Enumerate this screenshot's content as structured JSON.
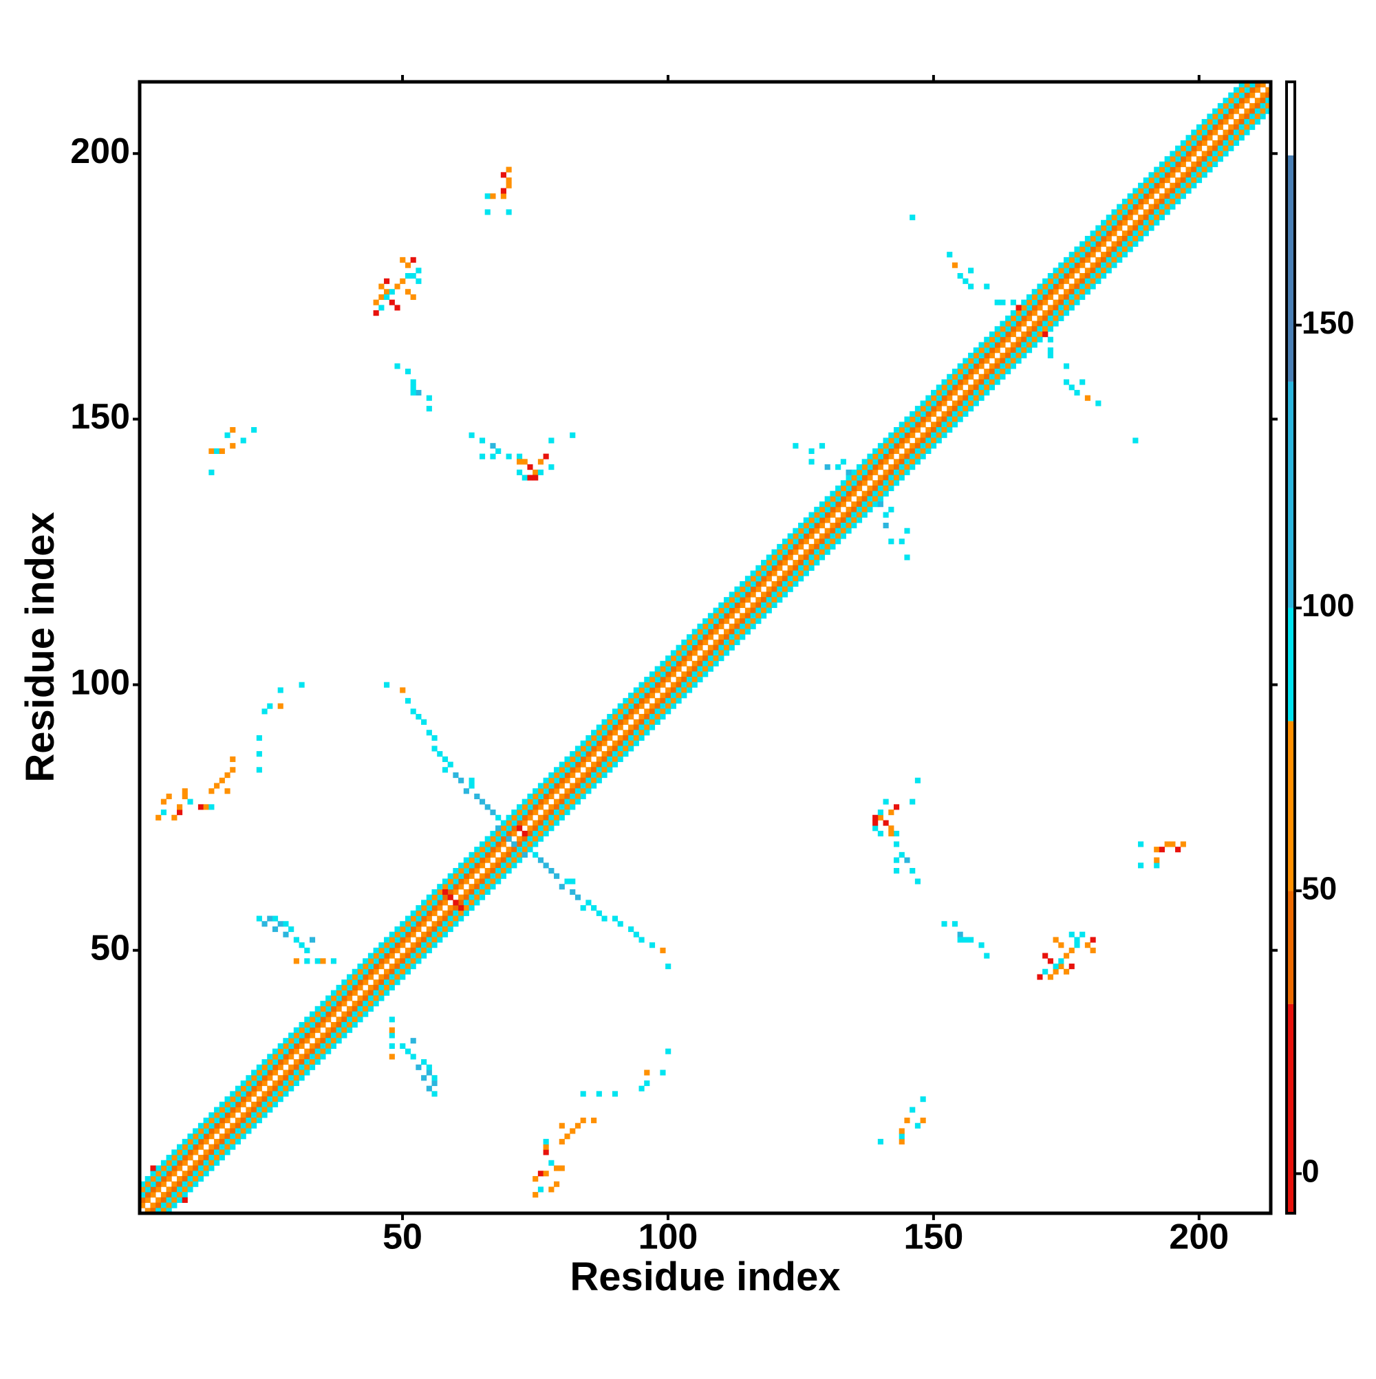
{
  "chart_data": {
    "type": "heatmap",
    "x_label": "Residue index",
    "y_label": "Residue index",
    "xlim": [
      0.5,
      213.5
    ],
    "ylim": [
      0.5,
      213.5
    ],
    "xticks": [
      50,
      100,
      150,
      200
    ],
    "yticks": [
      50,
      100,
      150,
      200
    ],
    "symmetric": true,
    "colorbar": {
      "lim": [
        -7,
        193
      ],
      "ticks": [
        0,
        50,
        100,
        150
      ],
      "bands": [
        {
          "from": -7,
          "to": 30,
          "color": "#e8120c"
        },
        {
          "from": 30,
          "to": 50,
          "color": "#ec6a00"
        },
        {
          "from": 50,
          "to": 80,
          "color": "#ff9000"
        },
        {
          "from": 80,
          "to": 100,
          "color": "#00e4f0"
        },
        {
          "from": 100,
          "to": 140,
          "color": "#2cb5dd"
        },
        {
          "from": 140,
          "to": 180,
          "color": "#4a7fb5"
        },
        {
          "from": 180,
          "to": 193,
          "color": "#ffffff"
        }
      ]
    },
    "diagonal_band": {
      "start": 1,
      "end": 213,
      "offsets": [
        1,
        2,
        3,
        4,
        5
      ],
      "values": [
        60,
        45,
        90,
        60,
        90
      ]
    },
    "cells": {
      "x": [
        66,
        70,
        66,
        67,
        69,
        69,
        70,
        70,
        69,
        70,
        45,
        46,
        45,
        46,
        47,
        46,
        47,
        48,
        49,
        50,
        51,
        52,
        53,
        51,
        52,
        50,
        49,
        51,
        52,
        48,
        47,
        53,
        49,
        51,
        52,
        52,
        53,
        55,
        55,
        52,
        63,
        65,
        67,
        68,
        70,
        72,
        73,
        74,
        75,
        76,
        77,
        78,
        72,
        73,
        74,
        75,
        76,
        78,
        82,
        65,
        67,
        72,
        14,
        14,
        15,
        16,
        17,
        18,
        18,
        20,
        22,
        4,
        5,
        5,
        6,
        7,
        8,
        8,
        9,
        9,
        10,
        12,
        13,
        14,
        14,
        15,
        16,
        17,
        18,
        18,
        17,
        23,
        23,
        23,
        24,
        25,
        27,
        27,
        31,
        47,
        50,
        51,
        52,
        53,
        54,
        55,
        56,
        56,
        57,
        58,
        59,
        60,
        61,
        62,
        63,
        64,
        65,
        66,
        67,
        68,
        68,
        69,
        70,
        63,
        58,
        23,
        24,
        25,
        26,
        26,
        27,
        28,
        28,
        29,
        30,
        31,
        32,
        30,
        32,
        34,
        35,
        37,
        33,
        153,
        154,
        155,
        157,
        156,
        157,
        160,
        162,
        163,
        165,
        166,
        124,
        127,
        129,
        127,
        130,
        132,
        133,
        134,
        136,
        146,
        58,
        59,
        72,
        3
      ],
      "y": [
        189,
        189,
        192,
        192,
        192,
        193,
        194,
        195,
        196,
        197,
        170,
        171,
        172,
        173,
        174,
        175,
        176,
        174,
        175,
        176,
        177,
        177,
        178,
        179,
        180,
        180,
        171,
        174,
        173,
        172,
        173,
        176,
        160,
        159,
        157,
        156,
        155,
        154,
        152,
        155,
        147,
        146,
        145,
        144,
        143,
        143,
        142,
        141,
        140,
        142,
        143,
        141,
        140,
        139,
        139,
        139,
        140,
        146,
        147,
        143,
        143,
        142,
        140,
        144,
        144,
        144,
        147,
        145,
        148,
        146,
        148,
        75,
        76,
        78,
        79,
        75,
        76,
        77,
        79,
        80,
        78,
        77,
        77,
        77,
        80,
        81,
        82,
        83,
        84,
        86,
        80,
        84,
        87,
        90,
        95,
        96,
        96,
        99,
        100,
        100,
        99,
        97,
        95,
        94,
        93,
        91,
        90,
        88,
        87,
        86,
        85,
        83,
        82,
        80,
        81,
        79,
        78,
        77,
        76,
        75,
        73,
        72,
        71,
        82,
        84,
        56,
        55,
        56,
        56,
        54,
        55,
        55,
        53,
        54,
        52,
        51,
        50,
        48,
        48,
        48,
        48,
        48,
        52,
        181,
        179,
        177,
        178,
        176,
        175,
        175,
        172,
        172,
        172,
        171,
        145,
        144,
        145,
        142,
        141,
        141,
        142,
        140,
        141,
        188,
        61,
        60,
        73,
        9
      ],
      "values": [
        90,
        90,
        90,
        60,
        60,
        15,
        60,
        60,
        15,
        60,
        15,
        90,
        60,
        60,
        60,
        60,
        15,
        90,
        60,
        60,
        90,
        90,
        90,
        60,
        15,
        60,
        15,
        60,
        60,
        15,
        90,
        90,
        90,
        90,
        90,
        90,
        120,
        90,
        90,
        90,
        90,
        90,
        120,
        90,
        90,
        90,
        60,
        15,
        60,
        60,
        15,
        90,
        90,
        90,
        15,
        15,
        90,
        90,
        90,
        90,
        90,
        60,
        90,
        60,
        90,
        60,
        90,
        60,
        60,
        90,
        90,
        60,
        90,
        60,
        60,
        60,
        15,
        60,
        60,
        60,
        90,
        15,
        60,
        90,
        60,
        60,
        60,
        60,
        60,
        60,
        60,
        90,
        90,
        90,
        90,
        90,
        60,
        90,
        90,
        90,
        60,
        90,
        90,
        90,
        90,
        90,
        90,
        90,
        90,
        90,
        90,
        120,
        120,
        120,
        90,
        120,
        120,
        120,
        120,
        90,
        120,
        90,
        120,
        90,
        90,
        90,
        120,
        120,
        90,
        120,
        120,
        90,
        120,
        90,
        90,
        90,
        90,
        60,
        90,
        90,
        60,
        90,
        120,
        90,
        60,
        90,
        90,
        90,
        90,
        90,
        90,
        90,
        90,
        15,
        90,
        90,
        90,
        90,
        120,
        90,
        90,
        120,
        90,
        90,
        15,
        15,
        15,
        15
      ]
    }
  }
}
